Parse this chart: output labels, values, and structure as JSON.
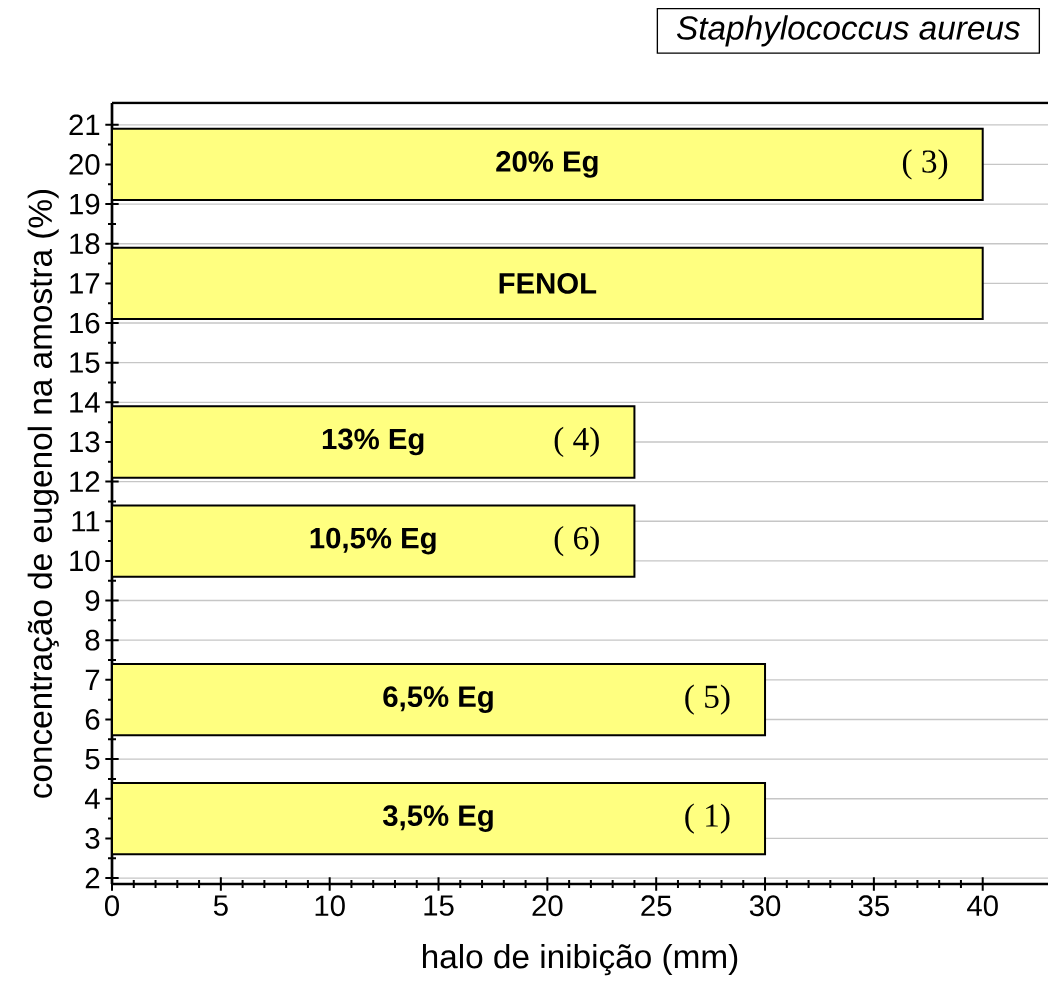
{
  "chart_data": {
    "type": "bar",
    "orientation": "horizontal",
    "title": "Staphylococcus aureus",
    "xlabel": "halo de inibição (mm)",
    "ylabel": "concentração de eugenol na amostra (%)",
    "series": [
      {
        "name": "20% Eg",
        "color": "#ffff80",
        "x": [
          20
        ],
        "values": [
          40
        ]
      },
      {
        "name": "FENOL",
        "color": "#ffff80",
        "x": [
          17
        ],
        "values": [
          40
        ]
      },
      {
        "name": "13% Eg",
        "color": "#ffff80",
        "x": [
          13
        ],
        "values": [
          24
        ]
      },
      {
        "name": "10,5% Eg",
        "color": "#ffff80",
        "x": [
          10.5
        ],
        "values": [
          24
        ]
      },
      {
        "name": "6,5% Eg",
        "color": "#ffff80",
        "x": [
          6.5
        ],
        "values": [
          30
        ]
      },
      {
        "name": "3,5% Eg",
        "color": "#ffff80",
        "x": [
          3.5
        ],
        "values": [
          30
        ]
      }
    ],
    "xlim": [
      0,
      43
    ],
    "xticks": [
      0,
      5,
      10,
      15,
      20,
      25,
      30,
      35,
      40
    ],
    "ylim": [
      1.85,
      21.55
    ],
    "yticks": [
      2,
      3,
      4,
      5,
      6,
      7,
      8,
      9,
      10,
      11,
      12,
      13,
      14,
      15,
      16,
      17,
      18,
      19,
      20,
      21
    ],
    "grid": "y",
    "annotations": [
      "( 3)",
      "( 4)",
      "( 6)",
      "( 5)",
      "( 1)"
    ]
  }
}
